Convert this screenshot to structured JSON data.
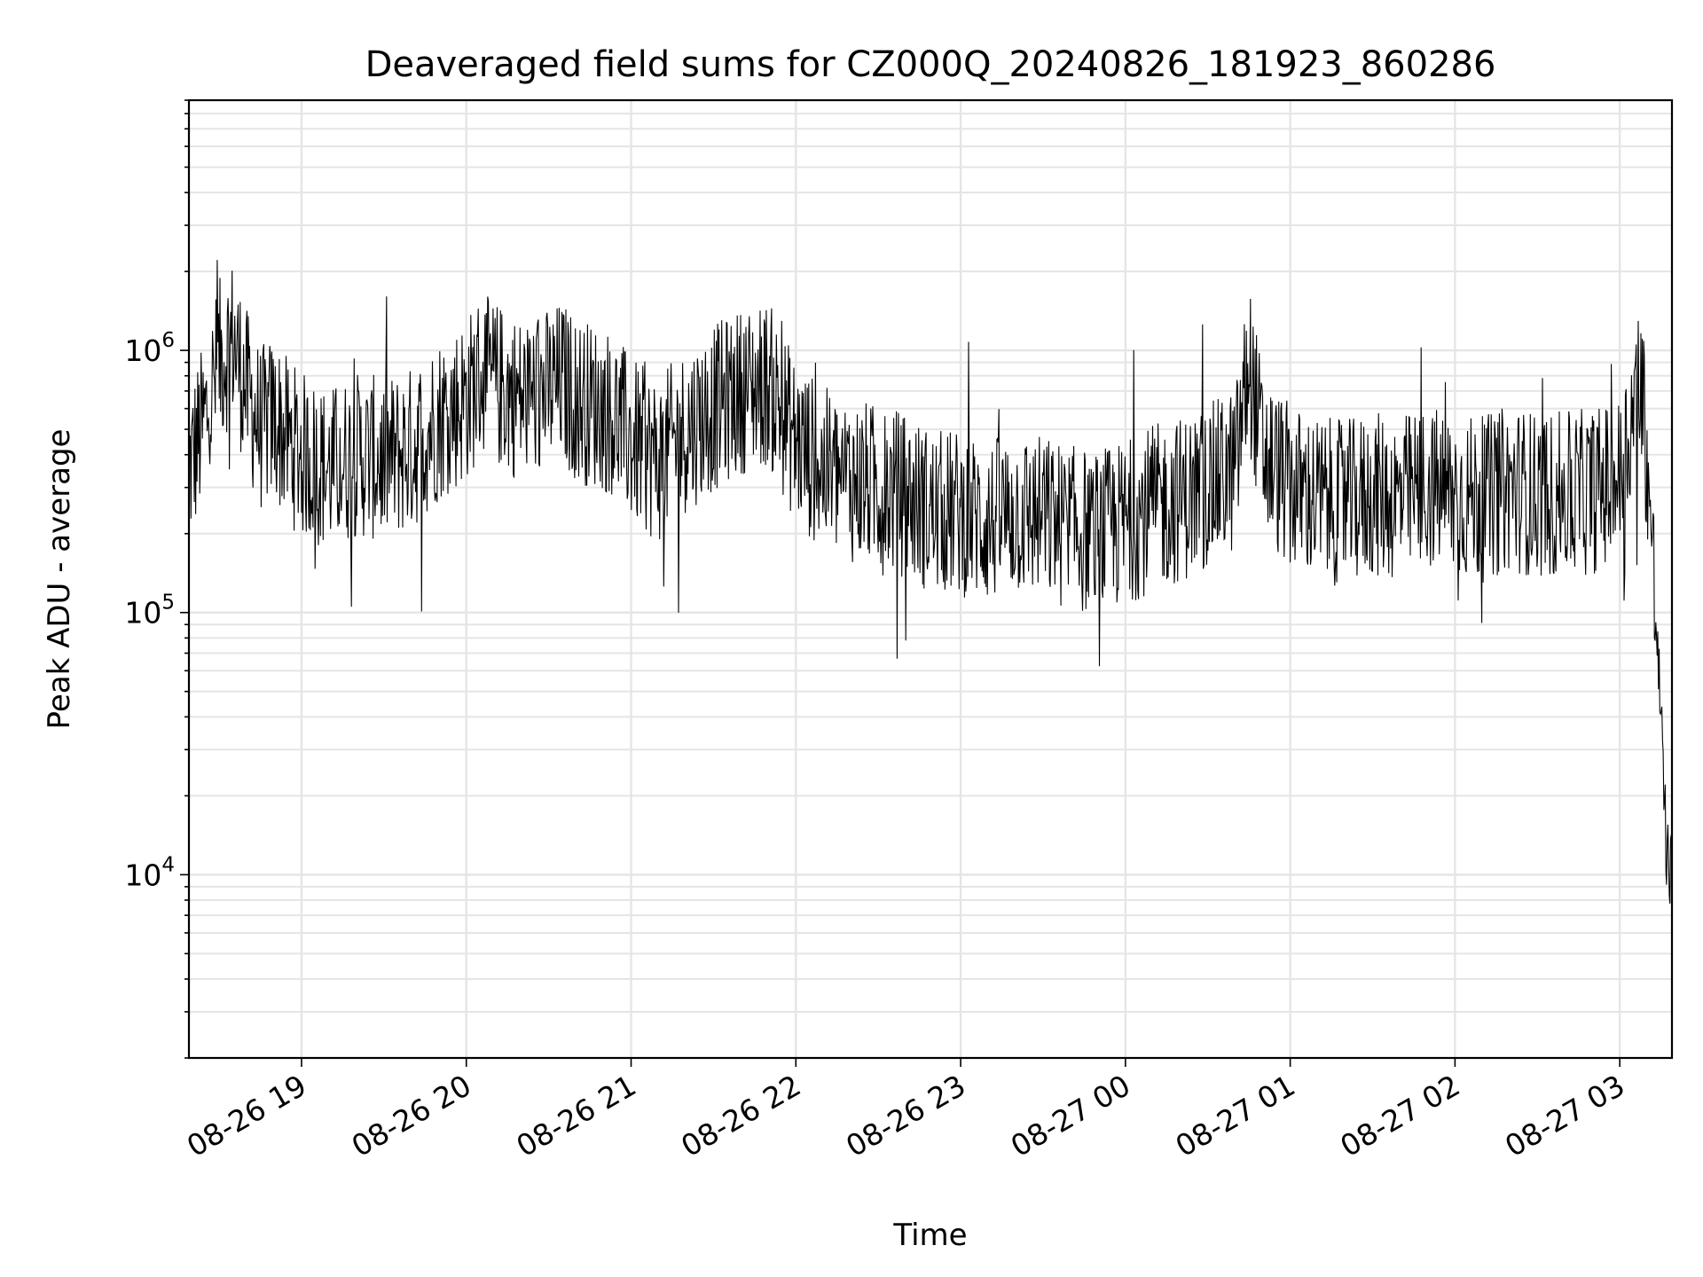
{
  "chart_data": {
    "type": "line",
    "title": "Deaveraged field sums for CZ000Q_20240826_181923_860286",
    "xlabel": "Time",
    "ylabel": "Peak ADU - average",
    "y_scale": "log",
    "grid": true,
    "line_color": "#000000",
    "x_tick_labels": [
      "08-26 19",
      "08-26 20",
      "08-26 21",
      "08-26 22",
      "08-26 23",
      "08-27 00",
      "08-27 01",
      "08-27 02",
      "08-27 03"
    ],
    "x_tick_times": [
      "2024-08-26 19:00",
      "2024-08-26 20:00",
      "2024-08-26 21:00",
      "2024-08-26 22:00",
      "2024-08-26 23:00",
      "2024-08-27 00:00",
      "2024-08-27 01:00",
      "2024-08-27 02:00",
      "2024-08-27 03:00"
    ],
    "xlim": [
      "2024-08-26 18:19",
      "2024-08-27 03:19"
    ],
    "y_tick_labels": [
      {
        "base": "10",
        "exp": "4",
        "value": 10000
      },
      {
        "base": "10",
        "exp": "5",
        "value": 100000
      },
      {
        "base": "10",
        "exp": "6",
        "value": 1000000
      }
    ],
    "ylim": [
      2000,
      9000000
    ],
    "series": [
      {
        "values_note": "approximate envelope of the noisy trace read from the chart",
        "x": [
          "2024-08-26 18:19",
          "2024-08-26 18:25",
          "2024-08-26 18:30",
          "2024-08-26 18:35",
          "2024-08-26 18:40",
          "2024-08-26 18:45",
          "2024-08-26 18:50",
          "2024-08-26 18:55",
          "2024-08-26 19:00",
          "2024-08-26 19:10",
          "2024-08-26 19:20",
          "2024-08-26 19:30",
          "2024-08-26 19:40",
          "2024-08-26 19:50",
          "2024-08-26 20:00",
          "2024-08-26 20:05",
          "2024-08-26 20:10",
          "2024-08-26 20:20",
          "2024-08-26 20:30",
          "2024-08-26 20:35",
          "2024-08-26 20:40",
          "2024-08-26 20:50",
          "2024-08-26 20:55",
          "2024-08-26 21:00",
          "2024-08-26 21:10",
          "2024-08-26 21:20",
          "2024-08-26 21:30",
          "2024-08-26 21:40",
          "2024-08-26 21:50",
          "2024-08-26 22:00",
          "2024-08-26 22:10",
          "2024-08-26 22:20",
          "2024-08-26 22:30",
          "2024-08-26 22:40",
          "2024-08-26 22:50",
          "2024-08-26 23:00",
          "2024-08-26 23:10",
          "2024-08-26 23:20",
          "2024-08-26 23:30",
          "2024-08-26 23:40",
          "2024-08-26 23:50",
          "2024-08-27 00:00",
          "2024-08-27 00:10",
          "2024-08-27 00:20",
          "2024-08-27 00:30",
          "2024-08-27 00:40",
          "2024-08-27 00:45",
          "2024-08-27 00:50",
          "2024-08-27 01:00",
          "2024-08-27 01:10",
          "2024-08-27 01:20",
          "2024-08-27 01:30",
          "2024-08-27 01:40",
          "2024-08-27 01:50",
          "2024-08-27 02:00",
          "2024-08-27 02:10",
          "2024-08-27 02:20",
          "2024-08-27 02:30",
          "2024-08-27 02:40",
          "2024-08-27 02:50",
          "2024-08-27 03:00",
          "2024-08-27 03:05",
          "2024-08-27 03:08",
          "2024-08-27 03:11",
          "2024-08-27 03:13",
          "2024-08-27 03:15",
          "2024-08-27 03:17",
          "2024-08-27 03:19"
        ],
        "values": [
          350000,
          550000,
          900000,
          1100000,
          700000,
          500000,
          550000,
          450000,
          400000,
          350000,
          400000,
          380000,
          420000,
          550000,
          650000,
          800000,
          750000,
          650000,
          700000,
          750000,
          650000,
          600000,
          550000,
          450000,
          380000,
          500000,
          600000,
          700000,
          750000,
          450000,
          350000,
          320000,
          300000,
          280000,
          240000,
          240000,
          220000,
          240000,
          230000,
          210000,
          200000,
          220000,
          250000,
          270000,
          300000,
          350000,
          900000,
          400000,
          300000,
          270000,
          260000,
          280000,
          270000,
          300000,
          280000,
          270000,
          300000,
          280000,
          280000,
          290000,
          320000,
          600000,
          800000,
          250000,
          100000,
          40000,
          12000,
          10000
        ]
      }
    ]
  }
}
